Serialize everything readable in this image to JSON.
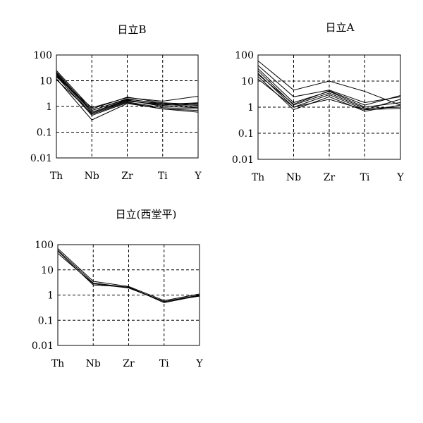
{
  "chart_data": [
    {
      "type": "line",
      "title": "日立B",
      "categories": [
        "Th",
        "Nb",
        "Zr",
        "Ti",
        "Y"
      ],
      "ylim": [
        0.01,
        100
      ],
      "yscale": "log",
      "yticks": [
        "100",
        "10",
        "1",
        "0.1",
        "0.01"
      ],
      "grid": true,
      "series": [
        {
          "values": [
            25,
            0.8,
            2.3,
            1.4,
            1.2
          ]
        },
        {
          "values": [
            22,
            0.7,
            2.0,
            1.2,
            1.0
          ]
        },
        {
          "values": [
            20,
            0.6,
            1.8,
            1.0,
            0.9
          ]
        },
        {
          "values": [
            18,
            0.5,
            1.5,
            0.9,
            0.8
          ]
        },
        {
          "values": [
            15,
            0.45,
            1.4,
            0.8,
            0.7
          ]
        },
        {
          "values": [
            12,
            0.3,
            1.3,
            0.8,
            0.6
          ]
        },
        {
          "values": [
            14,
            0.9,
            2.2,
            1.6,
            2.5
          ]
        },
        {
          "values": [
            16,
            0.7,
            1.9,
            1.3,
            1.1
          ]
        },
        {
          "values": [
            19,
            0.6,
            1.7,
            1.1,
            1.3
          ]
        },
        {
          "values": [
            11,
            0.55,
            1.6,
            1.2,
            1.4
          ]
        }
      ]
    },
    {
      "type": "line",
      "title": "日立A",
      "categories": [
        "Th",
        "Nb",
        "Zr",
        "Ti",
        "Y"
      ],
      "ylim": [
        0.01,
        100
      ],
      "yscale": "log",
      "yticks": [
        "100",
        "10",
        "1",
        "0.1",
        "0.01"
      ],
      "grid": true,
      "series": [
        {
          "values": [
            60,
            4.5,
            10,
            4.0,
            1.2
          ]
        },
        {
          "values": [
            40,
            2.5,
            4.5,
            1.5,
            2.5
          ]
        },
        {
          "values": [
            30,
            1.5,
            4.0,
            1.0,
            1.5
          ]
        },
        {
          "values": [
            25,
            1.2,
            3.5,
            0.9,
            1.0
          ]
        },
        {
          "values": [
            20,
            1.0,
            3.0,
            0.8,
            2.0
          ]
        },
        {
          "values": [
            15,
            0.8,
            2.5,
            0.7,
            1.2
          ]
        },
        {
          "values": [
            12,
            1.0,
            2.0,
            0.8,
            0.9
          ]
        },
        {
          "values": [
            18,
            1.3,
            4.2,
            1.2,
            2.8
          ]
        }
      ]
    },
    {
      "type": "line",
      "title": "日立(西堂平)",
      "categories": [
        "Th",
        "Nb",
        "Zr",
        "Ti",
        "Y"
      ],
      "ylim": [
        0.01,
        100
      ],
      "yscale": "log",
      "yticks": [
        "100",
        "10",
        "1",
        "0.1",
        "0.01"
      ],
      "grid": true,
      "series": [
        {
          "values": [
            70,
            3.5,
            2.2,
            0.6,
            1.1
          ]
        },
        {
          "values": [
            60,
            3.0,
            2.0,
            0.55,
            1.0
          ]
        },
        {
          "values": [
            55,
            2.5,
            2.1,
            0.5,
            0.95
          ]
        },
        {
          "values": [
            45,
            2.8,
            1.9,
            0.55,
            0.9
          ]
        }
      ]
    }
  ]
}
